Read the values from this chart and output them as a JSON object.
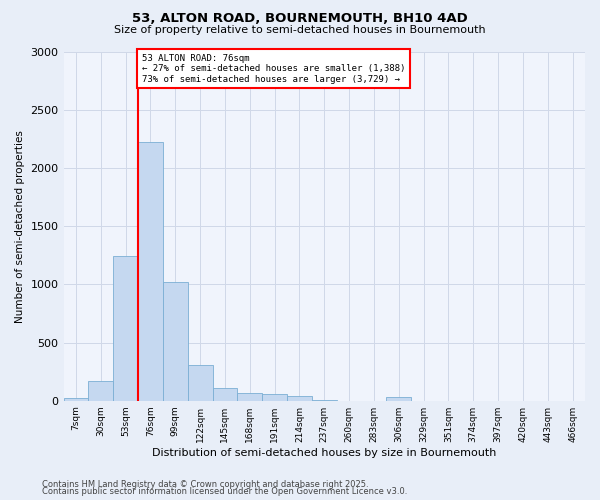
{
  "title": "53, ALTON ROAD, BOURNEMOUTH, BH10 4AD",
  "subtitle": "Size of property relative to semi-detached houses in Bournemouth",
  "xlabel": "Distribution of semi-detached houses by size in Bournemouth",
  "ylabel": "Number of semi-detached properties",
  "footer1": "Contains HM Land Registry data © Crown copyright and database right 2025.",
  "footer2": "Contains public sector information licensed under the Open Government Licence v3.0.",
  "property_label": "53 ALTON ROAD: 76sqm",
  "pct_smaller": 27,
  "pct_larger": 73,
  "count_smaller": 1388,
  "count_larger": 3729,
  "bin_labels": [
    "7sqm",
    "30sqm",
    "53sqm",
    "76sqm",
    "99sqm",
    "122sqm",
    "145sqm",
    "168sqm",
    "191sqm",
    "214sqm",
    "237sqm",
    "260sqm",
    "283sqm",
    "306sqm",
    "329sqm",
    "351sqm",
    "374sqm",
    "397sqm",
    "420sqm",
    "443sqm",
    "466sqm"
  ],
  "bar_values": [
    20,
    170,
    1240,
    2220,
    1020,
    305,
    110,
    65,
    55,
    40,
    10,
    0,
    0,
    30,
    0,
    0,
    0,
    0,
    0,
    0,
    0
  ],
  "bar_color": "#c5d8f0",
  "bar_edge_color": "#7bafd4",
  "red_line_bin": 3,
  "ylim": [
    0,
    3000
  ],
  "yticks": [
    0,
    500,
    1000,
    1500,
    2000,
    2500,
    3000
  ],
  "bg_color": "#e8eef8",
  "plot_bg_color": "#f0f4fc",
  "grid_color": "#d0d8e8"
}
